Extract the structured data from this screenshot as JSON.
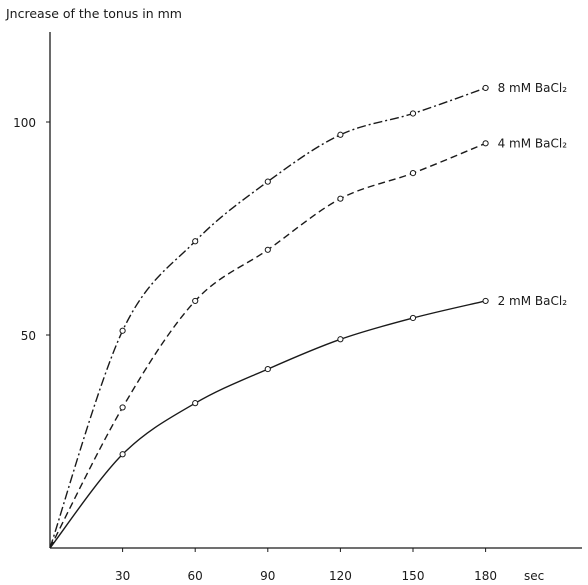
{
  "chart_data": {
    "type": "line",
    "ylabel": "Jncrease of the tonus in mm",
    "x_unit_label": "sec",
    "x": [
      0,
      30,
      60,
      90,
      120,
      150,
      180
    ],
    "xticks": [
      30,
      60,
      90,
      120,
      150,
      180
    ],
    "yticks": [
      50,
      100
    ],
    "xlim": [
      0,
      180
    ],
    "ylim": [
      0,
      110
    ],
    "grid": false,
    "legend": "inline labels at line ends",
    "series": [
      {
        "name": "8 mM BaCl₂",
        "style": "dash-dot",
        "values": [
          0,
          51,
          72,
          86,
          97,
          102,
          108
        ]
      },
      {
        "name": "4 mM BaCl₂",
        "style": "dashed",
        "values": [
          0,
          33,
          58,
          70,
          82,
          88,
          95
        ]
      },
      {
        "name": "2 mM BaCl₂",
        "style": "solid",
        "values": [
          0,
          22,
          34,
          42,
          49,
          54,
          58
        ]
      }
    ],
    "colors": {
      "ink": "#1a1a1a",
      "background": "#ffffff"
    }
  }
}
